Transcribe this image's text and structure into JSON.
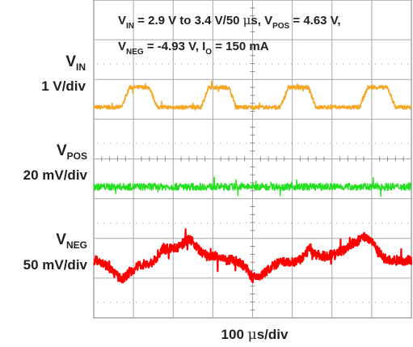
{
  "chart_data": {
    "type": "line",
    "title": {
      "line1": {
        "v": "V",
        "in_sub": "IN",
        "range": " = 2.9 V to 3.4 V/50 ",
        "mu": "μ",
        "s_text": "s, V",
        "pos_sub": "POS",
        "pos_value": " = 4.63 V,"
      },
      "line2": {
        "v": "V",
        "neg_sub": "NEG",
        "neg_value": " = -4.93 V, I",
        "o_sub": "O",
        "io_value": " = 150 mA"
      }
    },
    "xlabel": {
      "value": "100 ",
      "mu": "μ",
      "unit": "s/div"
    },
    "channels": {
      "vin": {
        "name": "V",
        "sub": "IN",
        "scale": "1 V/div",
        "color": "#f5a623"
      },
      "vpos": {
        "name": "V",
        "sub": "POS",
        "scale": "20 mV/div",
        "color": "#22e01e"
      },
      "vneg": {
        "name": "V",
        "sub": "NEG",
        "scale": "50 mV/div",
        "color": "#ff0000"
      }
    },
    "x_divisions": 8,
    "y_divisions": 8,
    "x_range": [
      0,
      800
    ],
    "x_unit": "μs",
    "series": [
      {
        "key": "vin",
        "x": [
          0,
          40,
          70,
          90,
          140,
          160,
          190,
          230,
          270,
          290,
          340,
          360,
          390,
          430,
          470,
          490,
          540,
          560,
          590,
          630,
          670,
          690,
          740,
          760,
          790,
          800
        ],
        "y": [
          1.3,
          1.3,
          1.3,
          1.8,
          1.8,
          1.3,
          1.3,
          1.3,
          1.3,
          1.8,
          1.8,
          1.3,
          1.3,
          1.3,
          1.3,
          1.8,
          1.8,
          1.3,
          1.3,
          1.3,
          1.3,
          1.8,
          1.8,
          1.3,
          1.3,
          1.3
        ]
      },
      {
        "key": "vpos",
        "x": [
          0,
          100,
          200,
          300,
          400,
          500,
          600,
          700,
          800
        ],
        "y": [
          -0.7,
          -0.7,
          -0.7,
          -0.7,
          -0.7,
          -0.7,
          -0.7,
          -0.7,
          -0.7
        ]
      },
      {
        "key": "vneg",
        "x": [
          0,
          15,
          40,
          70,
          90,
          120,
          140,
          160,
          170,
          190,
          210,
          240,
          250,
          265,
          290,
          310,
          330,
          360,
          380,
          400,
          420,
          450,
          470,
          500,
          520,
          545,
          560,
          580,
          600,
          630,
          640,
          660,
          680,
          700,
          710,
          730,
          750,
          770,
          800
        ],
        "y": [
          -2.55,
          -2.55,
          -2.75,
          -3.05,
          -2.85,
          -2.65,
          -2.65,
          -2.5,
          -2.3,
          -2.25,
          -2.25,
          -2.0,
          -2.1,
          -2.3,
          -2.45,
          -2.45,
          -2.55,
          -2.55,
          -2.7,
          -3.0,
          -2.95,
          -2.7,
          -2.6,
          -2.6,
          -2.55,
          -2.25,
          -2.4,
          -2.45,
          -2.4,
          -2.3,
          -2.2,
          -2.1,
          -1.95,
          -2.05,
          -2.2,
          -2.5,
          -2.55,
          -2.55,
          -2.55
        ]
      }
    ]
  }
}
